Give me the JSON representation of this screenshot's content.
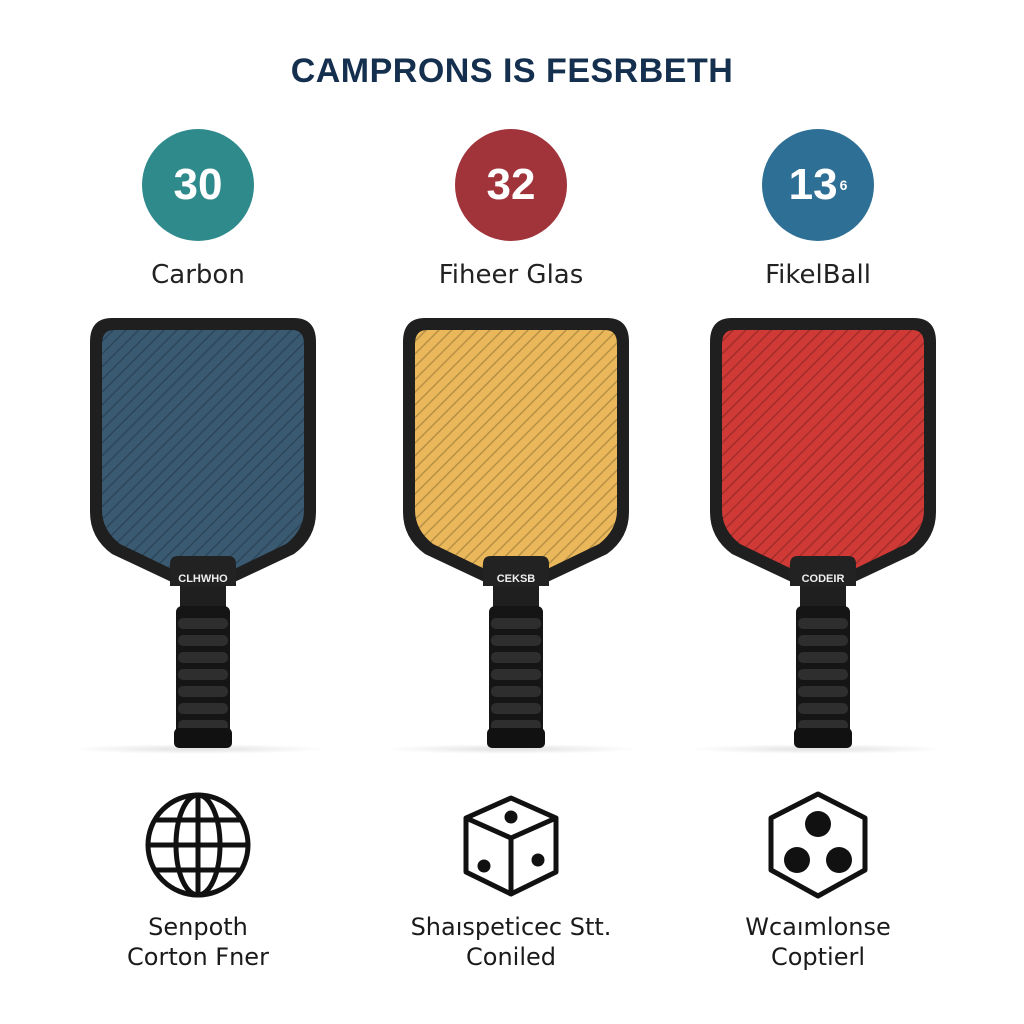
{
  "title": "CAMPRONS IS FESRBETH",
  "columns": [
    {
      "badge": "30",
      "badge_sup": "",
      "badge_color": "#2f8a8c",
      "material": "Carbon",
      "face_color": "#3a5a72",
      "throat_label": "CLHWHO",
      "icon": "globe-icon",
      "desc_line1": "Senpoth",
      "desc_line2": "Corton Fner"
    },
    {
      "badge": "32",
      "badge_sup": "",
      "badge_color": "#a0343a",
      "material": "Fiheer Glas",
      "face_color": "#eab85a",
      "throat_label": "CEKSB",
      "icon": "cube-icon",
      "desc_line1": "Shaıspeticec Stt.",
      "desc_line2": "Coniled"
    },
    {
      "badge": "13",
      "badge_sup": "6",
      "badge_color": "#2d6f95",
      "material": "FikelBall",
      "face_color": "#cf3a36",
      "throat_label": "CODEIR",
      "icon": "hexagon-dots-icon",
      "desc_line1": "Wcaımlonse",
      "desc_line2": "Coptierl"
    }
  ]
}
